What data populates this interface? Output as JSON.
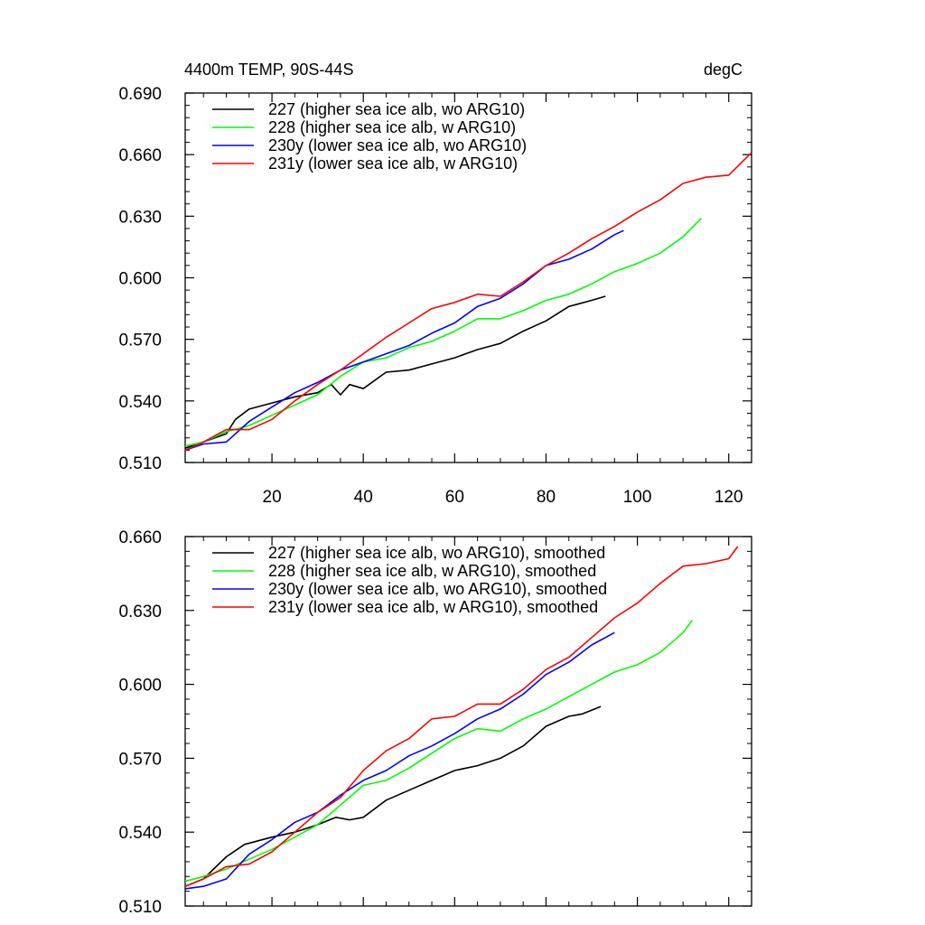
{
  "chart_data": [
    {
      "type": "line",
      "title_left": "4400m TEMP, 90S-44S",
      "title_right": "degC",
      "xlim": [
        1,
        125
      ],
      "ylim": [
        0.51,
        0.69
      ],
      "x_ticks": [
        20,
        40,
        60,
        80,
        100,
        120
      ],
      "x_tick_labels": [
        "20",
        "40",
        "60",
        "80",
        "100",
        "120"
      ],
      "y_ticks": [
        0.51,
        0.54,
        0.57,
        0.6,
        0.63,
        0.66,
        0.69
      ],
      "y_tick_labels": [
        "0.510",
        "0.540",
        "0.570",
        "0.600",
        "0.630",
        "0.660",
        "0.690"
      ],
      "legend_position": "top-left",
      "series": [
        {
          "name": "227 (higher sea ice alb, wo ARG10)",
          "color": "#000000",
          "x": [
            1,
            5,
            10,
            12,
            15,
            20,
            25,
            30,
            33,
            35,
            37,
            40,
            45,
            50,
            55,
            60,
            65,
            70,
            75,
            80,
            85,
            90,
            93
          ],
          "y": [
            0.517,
            0.52,
            0.524,
            0.531,
            0.536,
            0.539,
            0.542,
            0.544,
            0.548,
            0.543,
            0.548,
            0.546,
            0.554,
            0.555,
            0.558,
            0.561,
            0.565,
            0.568,
            0.574,
            0.579,
            0.586,
            0.589,
            0.591
          ]
        },
        {
          "name": "228 (higher sea ice alb, w ARG10)",
          "color": "#00ff00",
          "x": [
            1,
            5,
            10,
            15,
            20,
            25,
            30,
            35,
            40,
            45,
            50,
            55,
            60,
            65,
            70,
            75,
            80,
            85,
            90,
            95,
            100,
            105,
            110,
            114
          ],
          "y": [
            0.518,
            0.52,
            0.525,
            0.528,
            0.533,
            0.538,
            0.543,
            0.552,
            0.559,
            0.561,
            0.566,
            0.569,
            0.574,
            0.58,
            0.58,
            0.584,
            0.589,
            0.592,
            0.597,
            0.603,
            0.607,
            0.612,
            0.62,
            0.629
          ]
        },
        {
          "name": "230y (lower sea ice alb, wo ARG10)",
          "color": "#0000ff",
          "x": [
            1,
            5,
            10,
            15,
            20,
            25,
            30,
            35,
            40,
            45,
            50,
            55,
            60,
            65,
            70,
            75,
            80,
            85,
            90,
            95,
            97
          ],
          "y": [
            0.516,
            0.519,
            0.52,
            0.53,
            0.537,
            0.544,
            0.549,
            0.555,
            0.559,
            0.563,
            0.567,
            0.573,
            0.578,
            0.586,
            0.59,
            0.597,
            0.606,
            0.609,
            0.614,
            0.621,
            0.623
          ]
        },
        {
          "name": "231y (lower sea ice alb, w ARG10)",
          "color": "#ff0000",
          "x": [
            1,
            5,
            10,
            15,
            20,
            25,
            30,
            35,
            40,
            45,
            50,
            55,
            60,
            65,
            70,
            75,
            80,
            85,
            90,
            95,
            100,
            105,
            110,
            115,
            120,
            125
          ],
          "y": [
            0.516,
            0.52,
            0.526,
            0.526,
            0.531,
            0.54,
            0.548,
            0.555,
            0.563,
            0.571,
            0.578,
            0.585,
            0.588,
            0.592,
            0.591,
            0.598,
            0.606,
            0.612,
            0.619,
            0.625,
            0.632,
            0.638,
            0.646,
            0.649,
            0.65,
            0.661
          ]
        }
      ]
    },
    {
      "type": "line",
      "xlim": [
        1,
        125
      ],
      "ylim": [
        0.51,
        0.66
      ],
      "x_ticks": [
        20,
        40,
        60,
        80,
        100,
        120
      ],
      "y_ticks": [
        0.51,
        0.54,
        0.57,
        0.6,
        0.63,
        0.66
      ],
      "y_tick_labels": [
        "0.510",
        "0.540",
        "0.570",
        "0.600",
        "0.630",
        "0.660"
      ],
      "legend_position": "top-left",
      "series": [
        {
          "name": "227 (higher sea ice alb, wo ARG10), smoothed",
          "color": "#000000",
          "x": [
            1,
            5,
            10,
            14,
            20,
            25,
            30,
            34,
            37,
            40,
            45,
            50,
            55,
            60,
            65,
            70,
            75,
            80,
            85,
            88,
            92
          ],
          "y": [
            0.518,
            0.521,
            0.53,
            0.535,
            0.538,
            0.54,
            0.543,
            0.546,
            0.545,
            0.546,
            0.553,
            0.557,
            0.561,
            0.565,
            0.567,
            0.57,
            0.575,
            0.583,
            0.587,
            0.588,
            0.591
          ]
        },
        {
          "name": "228 (higher sea ice alb, w ARG10), smoothed",
          "color": "#00ff00",
          "x": [
            1,
            5,
            10,
            15,
            20,
            25,
            30,
            35,
            40,
            45,
            50,
            55,
            60,
            65,
            70,
            75,
            80,
            85,
            90,
            95,
            100,
            105,
            110,
            112
          ],
          "y": [
            0.52,
            0.522,
            0.525,
            0.529,
            0.533,
            0.538,
            0.543,
            0.551,
            0.559,
            0.561,
            0.566,
            0.572,
            0.578,
            0.582,
            0.581,
            0.586,
            0.59,
            0.595,
            0.6,
            0.605,
            0.608,
            0.613,
            0.621,
            0.626
          ]
        },
        {
          "name": "230y (lower sea ice alb, wo ARG10), smoothed",
          "color": "#0000ff",
          "x": [
            1,
            5,
            10,
            15,
            20,
            25,
            30,
            35,
            40,
            45,
            50,
            55,
            60,
            65,
            70,
            75,
            80,
            85,
            90,
            95
          ],
          "y": [
            0.517,
            0.518,
            0.521,
            0.531,
            0.537,
            0.544,
            0.548,
            0.555,
            0.561,
            0.565,
            0.571,
            0.575,
            0.58,
            0.586,
            0.59,
            0.596,
            0.604,
            0.609,
            0.616,
            0.621
          ]
        },
        {
          "name": "231y (lower sea ice alb, w ARG10), smoothed",
          "color": "#ff0000",
          "x": [
            1,
            5,
            10,
            15,
            20,
            25,
            30,
            35,
            40,
            45,
            50,
            55,
            60,
            65,
            70,
            75,
            80,
            85,
            90,
            95,
            100,
            105,
            110,
            115,
            120,
            122
          ],
          "y": [
            0.518,
            0.521,
            0.526,
            0.527,
            0.532,
            0.54,
            0.548,
            0.554,
            0.565,
            0.573,
            0.578,
            0.586,
            0.587,
            0.592,
            0.592,
            0.598,
            0.606,
            0.611,
            0.619,
            0.627,
            0.633,
            0.641,
            0.648,
            0.649,
            0.651,
            0.656
          ]
        }
      ]
    }
  ]
}
